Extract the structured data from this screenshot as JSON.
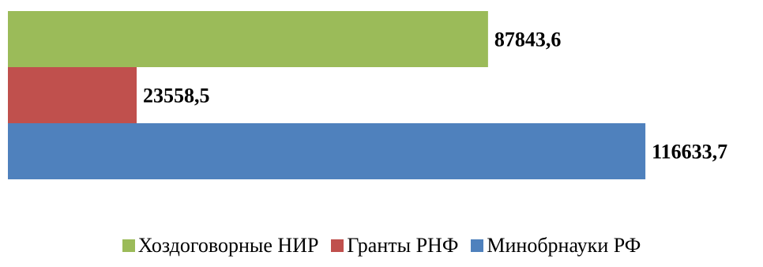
{
  "chart_data": {
    "type": "bar",
    "orientation": "horizontal",
    "title": "",
    "xlabel": "",
    "ylabel": "",
    "xlim": [
      0,
      125000
    ],
    "grid": false,
    "legend_position": "bottom",
    "series": [
      {
        "name": "Хоздоговорные НИР",
        "value": 87843.6,
        "label": "87843,6",
        "color": "#9BBB59"
      },
      {
        "name": "Гранты РНФ",
        "value": 23558.5,
        "label": "23558,5",
        "color": "#C0504D"
      },
      {
        "name": "Минобрнауки РФ",
        "value": 116633.7,
        "label": "116633,7",
        "color": "#4F81BD"
      }
    ]
  }
}
